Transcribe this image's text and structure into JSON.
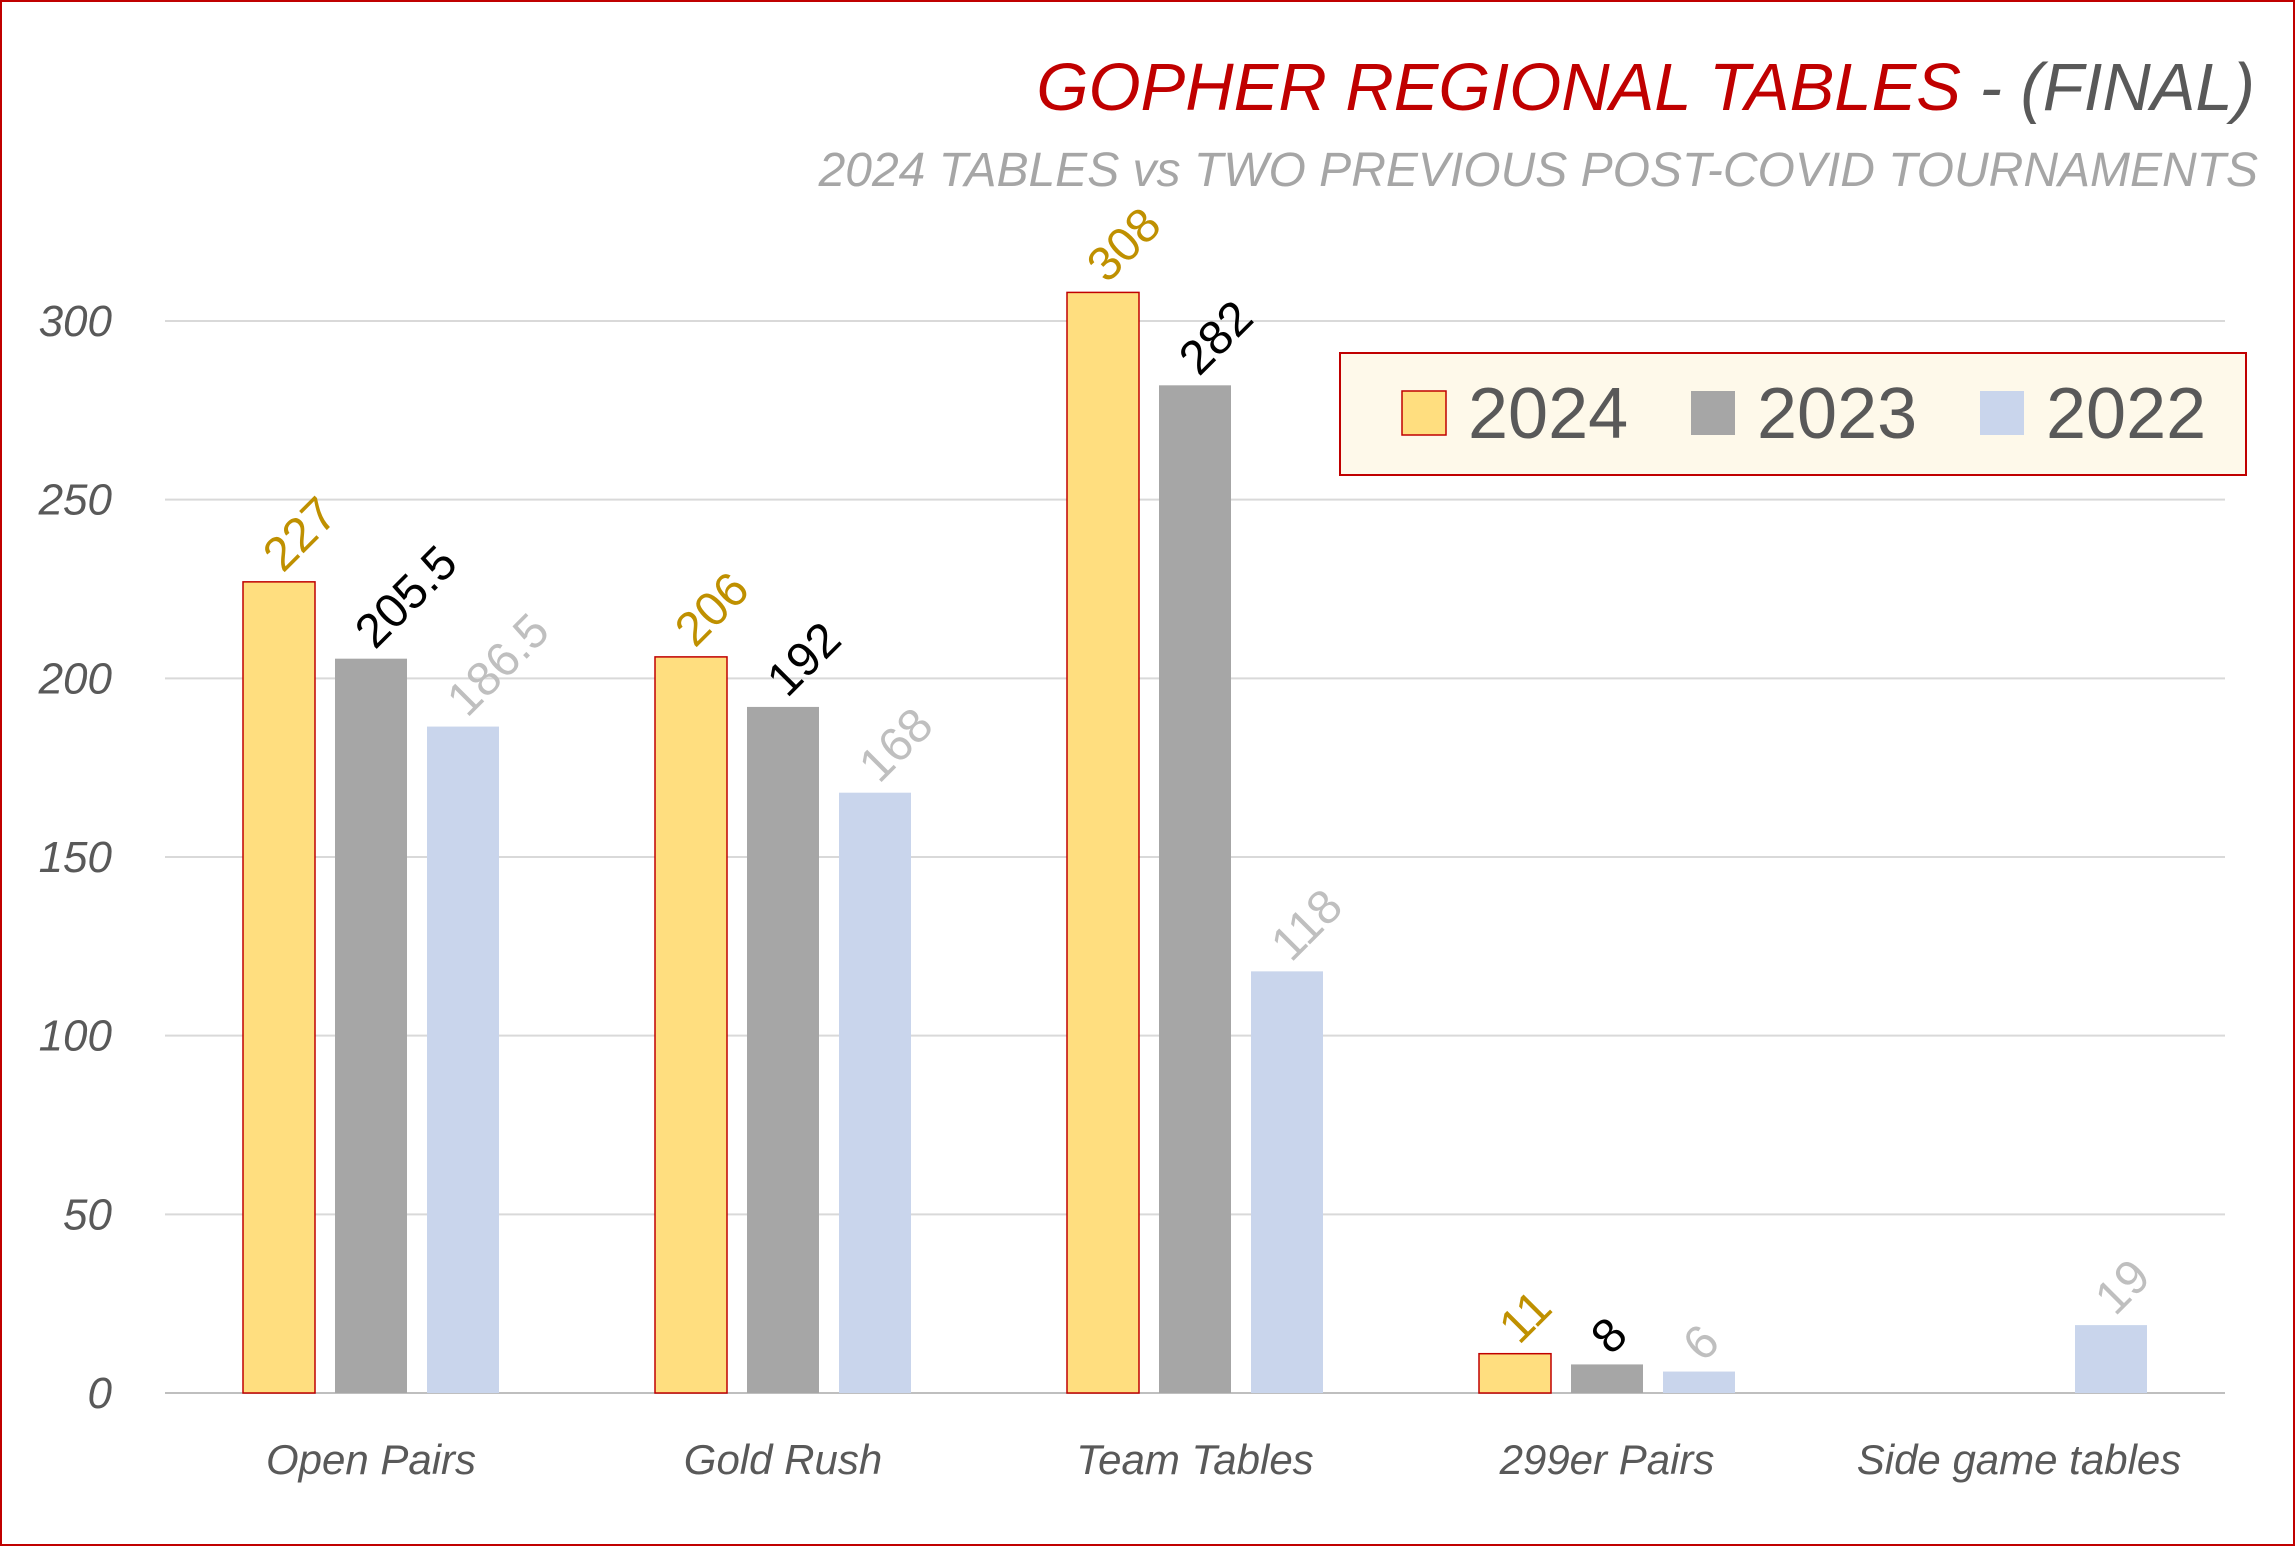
{
  "chart_data": {
    "type": "bar",
    "title": "GOPHER REGIONAL TABLES",
    "title_suffix": " - (FINAL)",
    "subtitle": "2024 TABLES vs TWO PREVIOUS POST-COVID TOURNAMENTS",
    "categories": [
      "Open Pairs",
      "Gold Rush",
      "Team Tables",
      "299er Pairs",
      "Side game tables"
    ],
    "series": [
      {
        "name": "2024",
        "values": [
          227,
          206,
          308,
          11,
          null
        ],
        "color": "#ffde7f",
        "border": "#c00000",
        "label_color": "#bf9000"
      },
      {
        "name": "2023",
        "values": [
          205.5,
          192,
          282,
          8,
          null
        ],
        "color": "#a6a6a6",
        "border": "none",
        "label_color": "#000000"
      },
      {
        "name": "2022",
        "values": [
          186.5,
          168,
          118,
          6,
          19
        ],
        "color": "#c9d5ec",
        "border": "none",
        "label_color": "#bfbfbf"
      }
    ],
    "yticks": [
      0,
      50,
      100,
      150,
      200,
      250,
      300
    ],
    "ylim": [
      0,
      300
    ],
    "grid": true,
    "legend_position": "top-right",
    "legend_background": "#fef9ea",
    "legend_border": "#c00000",
    "frame_border": "#c00000"
  }
}
